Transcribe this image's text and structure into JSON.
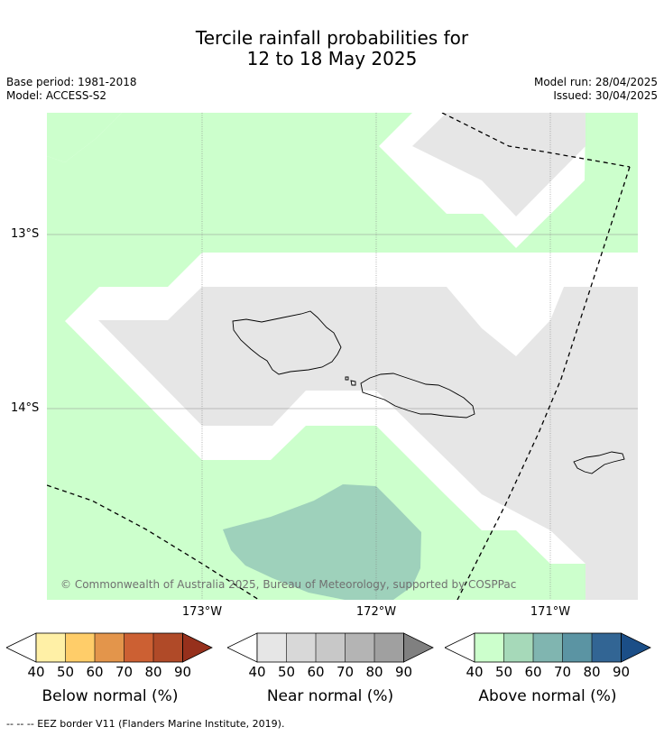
{
  "title_line1": "Tercile rainfall probabilities for",
  "title_line2": "12 to 18 May 2025",
  "base_period": "Base period: 1981-2018",
  "model": "Model: ACCESS-S2",
  "model_run": "Model run: 28/04/2025",
  "issued": "Issued: 30/04/2025",
  "lat_labels": [
    "13°S",
    "14°S"
  ],
  "lon_labels": [
    "173°W",
    "172°W",
    "171°W"
  ],
  "copyright": "© Commonwealth of Australia 2025, Bureau of Meteorology, supported by COSPPac",
  "colorbars": [
    {
      "title": "Below normal (%)",
      "ticks": [
        "40",
        "50",
        "60",
        "70",
        "80",
        "90"
      ],
      "colors": [
        "#fff0a6",
        "#ffcd69",
        "#e3954b",
        "#cc6033",
        "#b04a28",
        "#96301c"
      ]
    },
    {
      "title": "Near normal (%)",
      "ticks": [
        "40",
        "50",
        "60",
        "70",
        "80",
        "90"
      ],
      "colors": [
        "#e6e6e6",
        "#d8d8d8",
        "#c8c8c8",
        "#b4b4b4",
        "#a0a0a0",
        "#808080"
      ]
    },
    {
      "title": "Above normal (%)",
      "ticks": [
        "40",
        "50",
        "60",
        "70",
        "80",
        "90"
      ],
      "colors": [
        "#ccffcc",
        "#a6d9b9",
        "#80b5b0",
        "#5b94a3",
        "#326594",
        "#1b4e87"
      ]
    }
  ],
  "footnote": "--  --  -- EEZ border V11 (Flanders Marine Institute, 2019).",
  "colors": {
    "above_40": "#ccffcc",
    "above_50": "#9ed1bb",
    "near_40": "#e6e6e6",
    "gridline": "#808080"
  }
}
